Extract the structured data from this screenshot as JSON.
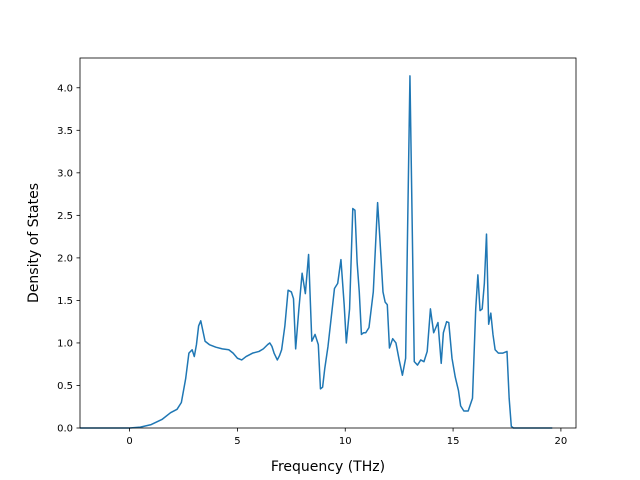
{
  "chart_data": {
    "type": "line",
    "title": "",
    "xlabel": "Frequency (THz)",
    "ylabel": "Density of States",
    "xlim": [
      -2.3,
      20.7
    ],
    "ylim": [
      0.0,
      4.35
    ],
    "xticks": [
      0,
      5,
      10,
      15,
      20
    ],
    "xtick_labels": [
      "0",
      "5",
      "10",
      "15",
      "20"
    ],
    "yticks": [
      0.0,
      0.5,
      1.0,
      1.5,
      2.0,
      2.5,
      3.0,
      3.5,
      4.0
    ],
    "ytick_labels": [
      "0.0",
      "0.5",
      "1.0",
      "1.5",
      "2.0",
      "2.5",
      "3.0",
      "3.5",
      "4.0"
    ],
    "grid": false,
    "line_color": "#1f77b4",
    "series": [
      {
        "x": [
          -2.3,
          0.0,
          0.5,
          1.0,
          1.5,
          1.9,
          2.2,
          2.4,
          2.6,
          2.75,
          2.9,
          3.0,
          3.1,
          3.2,
          3.3,
          3.5,
          3.7,
          4.0,
          4.3,
          4.6,
          4.8,
          5.0,
          5.2,
          5.4,
          5.7,
          6.0,
          6.2,
          6.4,
          6.5,
          6.6,
          6.7,
          6.85,
          6.95,
          7.05,
          7.2,
          7.35,
          7.5,
          7.6,
          7.7,
          7.85,
          8.0,
          8.15,
          8.3,
          8.45,
          8.6,
          8.75,
          8.85,
          8.95,
          9.05,
          9.2,
          9.35,
          9.5,
          9.65,
          9.8,
          9.95,
          10.05,
          10.2,
          10.35,
          10.45,
          10.55,
          10.65,
          10.75,
          10.85,
          10.95,
          11.1,
          11.3,
          11.5,
          11.6,
          11.75,
          11.85,
          11.95,
          12.05,
          12.2,
          12.35,
          12.5,
          12.65,
          12.8,
          13.0,
          13.2,
          13.35,
          13.5,
          13.65,
          13.8,
          13.95,
          14.1,
          14.3,
          14.45,
          14.55,
          14.7,
          14.8,
          14.95,
          15.1,
          15.25,
          15.35,
          15.5,
          15.7,
          15.9,
          16.05,
          16.15,
          16.25,
          16.35,
          16.45,
          16.55,
          16.65,
          16.75,
          16.85,
          16.95,
          17.1,
          17.3,
          17.5,
          17.6,
          17.7,
          17.8,
          18.0,
          19.6
        ],
        "y": [
          0.0,
          0.0,
          0.01,
          0.04,
          0.1,
          0.18,
          0.22,
          0.3,
          0.58,
          0.88,
          0.92,
          0.84,
          0.98,
          1.2,
          1.26,
          1.02,
          0.98,
          0.95,
          0.93,
          0.92,
          0.88,
          0.82,
          0.8,
          0.84,
          0.88,
          0.9,
          0.93,
          0.98,
          1.0,
          0.96,
          0.88,
          0.8,
          0.85,
          0.92,
          1.2,
          1.62,
          1.6,
          1.52,
          0.93,
          1.4,
          1.82,
          1.58,
          2.04,
          1.02,
          1.1,
          0.98,
          0.46,
          0.48,
          0.7,
          0.96,
          1.3,
          1.64,
          1.7,
          1.98,
          1.45,
          1.0,
          1.4,
          2.58,
          2.56,
          1.95,
          1.6,
          1.1,
          1.12,
          1.12,
          1.18,
          1.6,
          2.65,
          2.25,
          1.6,
          1.48,
          1.45,
          0.94,
          1.05,
          1.0,
          0.8,
          0.62,
          0.82,
          4.14,
          0.78,
          0.74,
          0.8,
          0.78,
          0.9,
          1.4,
          1.12,
          1.24,
          0.76,
          1.12,
          1.25,
          1.24,
          0.82,
          0.6,
          0.44,
          0.26,
          0.2,
          0.2,
          0.35,
          1.4,
          1.8,
          1.38,
          1.4,
          1.7,
          2.28,
          1.22,
          1.35,
          1.1,
          0.92,
          0.88,
          0.88,
          0.9,
          0.35,
          0.02,
          0.0,
          0.0,
          0.0
        ]
      }
    ]
  }
}
